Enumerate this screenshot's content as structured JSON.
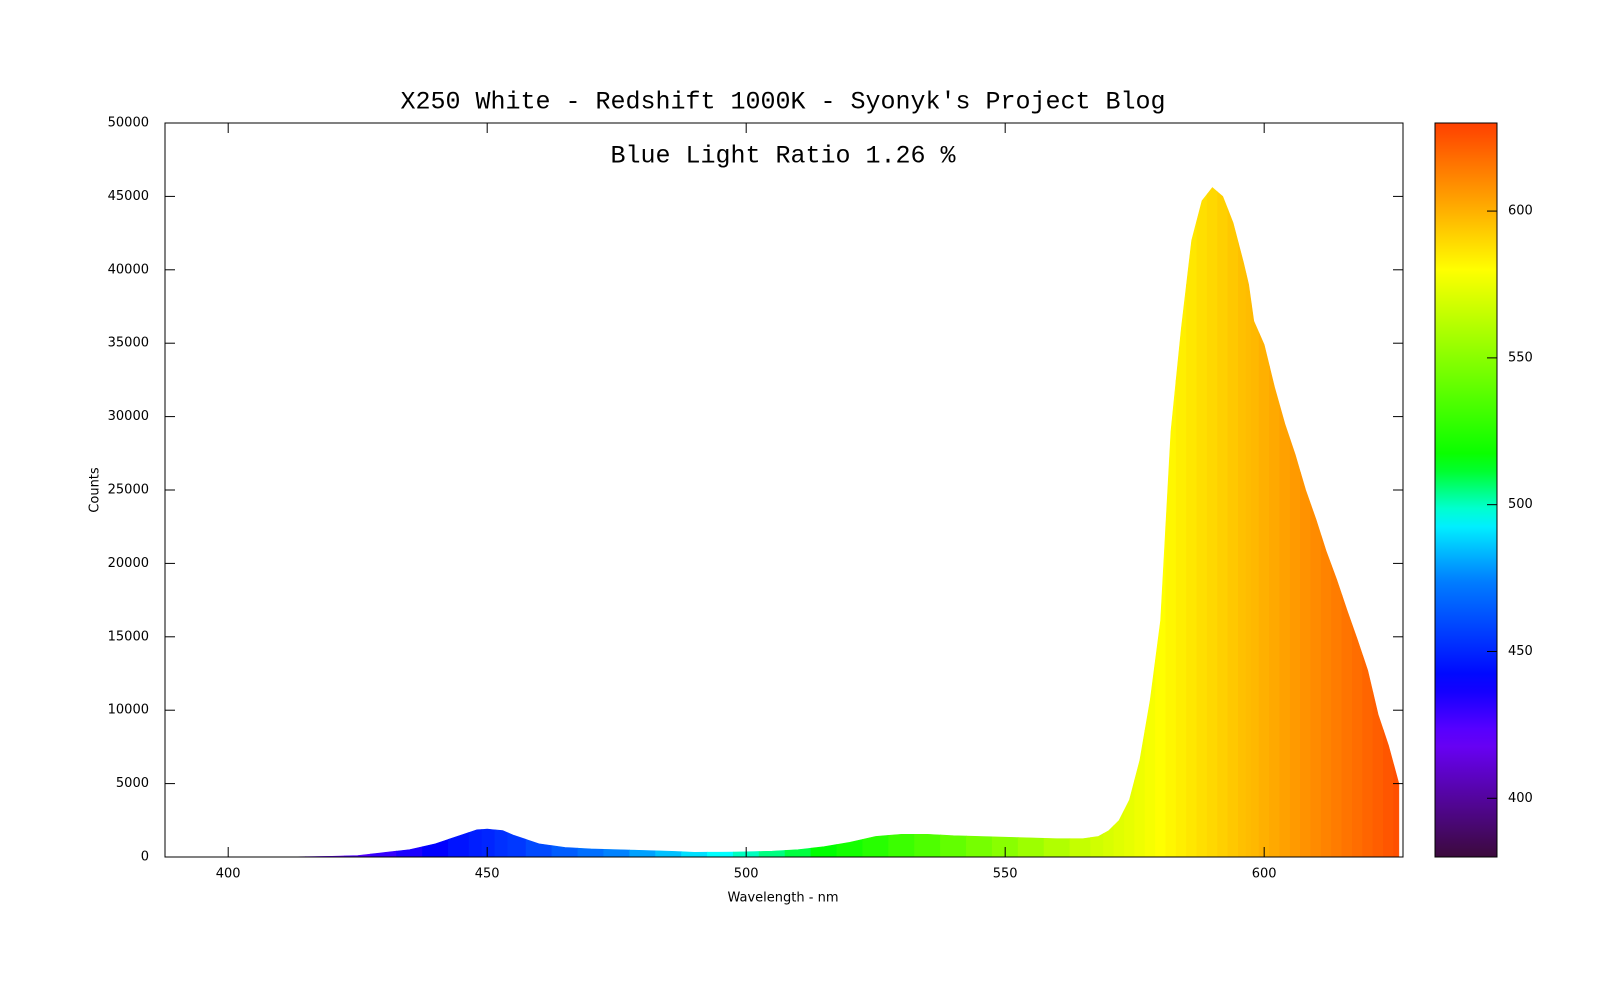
{
  "chart_data": {
    "type": "spectrum-area",
    "title": "X250 White - Redshift 1000K - Syonyk's Project Blog",
    "annotation": "Blue Light Ratio 1.26 %",
    "x_label": "Wavelength - nm",
    "y_label": "Counts",
    "x": [
      388,
      400,
      410,
      420,
      425,
      430,
      435,
      440,
      445,
      448,
      450,
      453,
      455,
      460,
      465,
      470,
      475,
      480,
      485,
      490,
      495,
      500,
      505,
      510,
      515,
      520,
      525,
      530,
      535,
      540,
      545,
      550,
      555,
      560,
      565,
      568,
      570,
      572,
      574,
      576,
      578,
      580,
      582,
      584,
      586,
      588,
      590,
      592,
      594,
      596,
      597,
      598,
      600,
      602,
      604,
      606,
      608,
      610,
      612,
      614,
      616,
      618,
      620,
      622,
      624,
      626
    ],
    "values": [
      0,
      0,
      0,
      50,
      100,
      300,
      500,
      900,
      1500,
      1850,
      1900,
      1800,
      1500,
      900,
      650,
      550,
      500,
      450,
      400,
      320,
      330,
      350,
      400,
      500,
      700,
      1000,
      1400,
      1550,
      1550,
      1450,
      1400,
      1350,
      1300,
      1250,
      1250,
      1400,
      1800,
      2500,
      3900,
      6600,
      10700,
      16100,
      29000,
      36000,
      42000,
      44700,
      45600,
      45000,
      43200,
      40500,
      39000,
      36500,
      34900,
      32000,
      29500,
      27400,
      25000,
      23000,
      20800,
      18900,
      16800,
      14800,
      12700,
      9700,
      7600,
      5000
    ],
    "xlim": [
      387.8,
      626.8
    ],
    "ylim": [
      0,
      50000
    ],
    "xticks": [
      400,
      450,
      500,
      550,
      600
    ],
    "yticks": [
      0,
      5000,
      10000,
      15000,
      20000,
      25000,
      30000,
      35000,
      40000,
      45000,
      50000
    ],
    "clim": [
      380,
      630
    ],
    "cticks": [
      400,
      450,
      500,
      550,
      600
    ]
  }
}
